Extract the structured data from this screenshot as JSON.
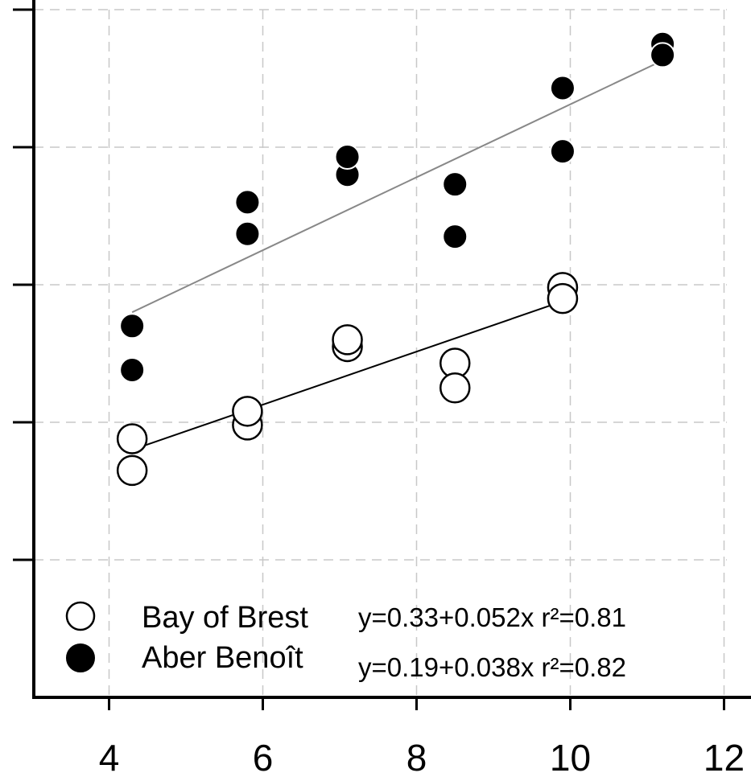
{
  "chart_data": {
    "type": "scatter",
    "xlim": [
      3,
      12
    ],
    "ylim": [
      0,
      5
    ],
    "x_ticks": [
      4,
      6,
      8,
      10,
      12
    ],
    "y_ticks": [
      0,
      1,
      2,
      3,
      4,
      5
    ],
    "y_tick_labels_shown": false,
    "grid": true,
    "legend_position": "bottom-left",
    "series": [
      {
        "name": "Bay of Brest",
        "marker": "open-circle",
        "line_color": "#000000",
        "equation": "y=0.33+0.052x r²=0.81",
        "points": [
          {
            "x": 4.3,
            "y": 1.88
          },
          {
            "x": 4.3,
            "y": 1.65
          },
          {
            "x": 5.8,
            "y": 1.98
          },
          {
            "x": 5.8,
            "y": 2.08
          },
          {
            "x": 7.1,
            "y": 2.55
          },
          {
            "x": 7.1,
            "y": 2.6
          },
          {
            "x": 8.5,
            "y": 2.43
          },
          {
            "x": 8.5,
            "y": 2.25
          },
          {
            "x": 9.9,
            "y": 2.98
          },
          {
            "x": 9.9,
            "y": 2.9
          }
        ],
        "fit": {
          "x": [
            4.3,
            9.9
          ],
          "y": [
            1.8,
            2.88
          ]
        }
      },
      {
        "name": "Aber Benoît",
        "marker": "filled-circle",
        "line_color": "#888888",
        "equation": "y=0.19+0.038x r²=0.82",
        "points": [
          {
            "x": 4.3,
            "y": 2.7
          },
          {
            "x": 4.3,
            "y": 2.38
          },
          {
            "x": 5.8,
            "y": 3.6
          },
          {
            "x": 5.8,
            "y": 3.37
          },
          {
            "x": 7.1,
            "y": 3.8
          },
          {
            "x": 7.1,
            "y": 3.93
          },
          {
            "x": 8.5,
            "y": 3.73
          },
          {
            "x": 8.5,
            "y": 3.35
          },
          {
            "x": 9.9,
            "y": 4.43
          },
          {
            "x": 9.9,
            "y": 3.97
          },
          {
            "x": 11.2,
            "y": 4.75
          },
          {
            "x": 11.2,
            "y": 4.67
          }
        ],
        "fit": {
          "x": [
            4.3,
            11.2
          ],
          "y": [
            2.8,
            4.63
          ]
        }
      }
    ]
  }
}
